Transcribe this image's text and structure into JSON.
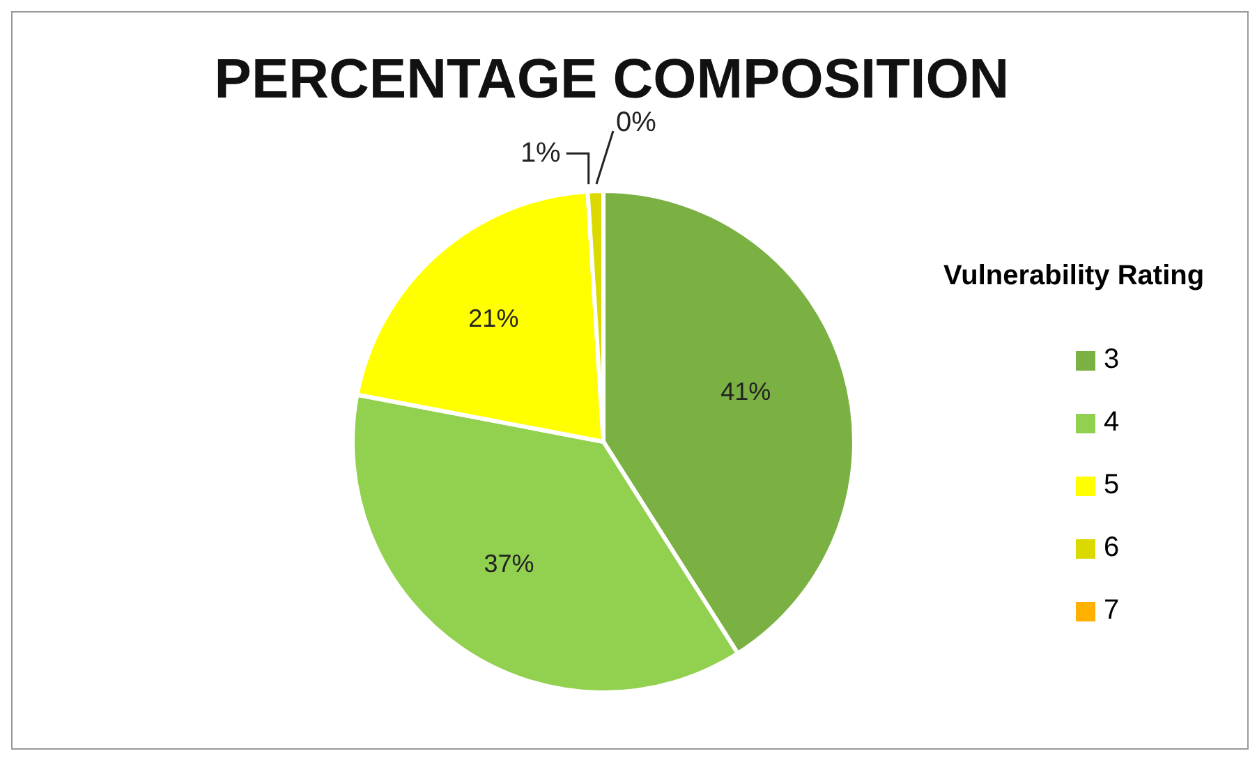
{
  "chart_data": {
    "type": "pie",
    "title": "PERCENTAGE COMPOSITION",
    "legend_title": "Vulnerability Rating",
    "categories": [
      "3",
      "4",
      "5",
      "6",
      "7"
    ],
    "values": [
      41,
      37,
      21,
      1,
      0
    ],
    "value_labels": [
      "41%",
      "37%",
      "21%",
      "1%",
      "0%"
    ],
    "colors": [
      "#7ab142",
      "#92d050",
      "#ffff00",
      "#dada00",
      "#ffb000"
    ],
    "legend": "right"
  }
}
